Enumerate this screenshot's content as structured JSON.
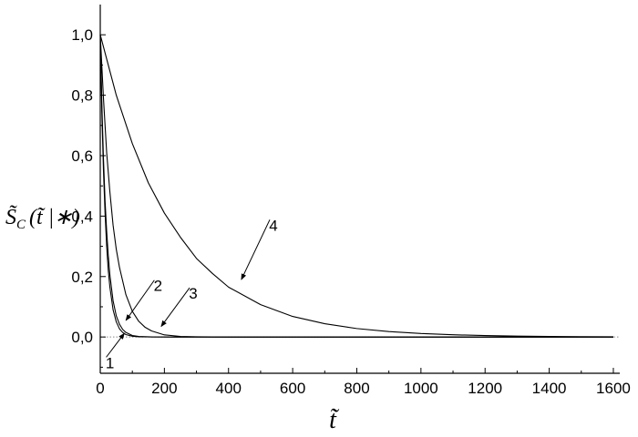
{
  "chart_data": {
    "type": "line",
    "title": "",
    "xlabel": "t̃",
    "ylabel": {
      "main": "S̃",
      "subscript": "C",
      "argument": "(t̃ |∗)"
    },
    "xlim": [
      0,
      1620
    ],
    "ylim": [
      -0.12,
      1.1
    ],
    "x_ticks": [
      0,
      200,
      400,
      600,
      800,
      1000,
      1200,
      1400,
      1600
    ],
    "x_tick_labels": [
      "0",
      "200",
      "400",
      "600",
      "800",
      "1000",
      "1200",
      "1400",
      "1600"
    ],
    "y_ticks": [
      0.0,
      0.2,
      0.4,
      0.6,
      0.8,
      1.0
    ],
    "y_tick_labels": [
      "0,0",
      "0,2",
      "0,4",
      "0,6",
      "0,8",
      "1,0"
    ],
    "reference_lines": {
      "x": 0,
      "y": 0,
      "style": "dotted"
    },
    "series": [
      {
        "name": "1",
        "x": [
          0,
          5,
          10,
          15,
          20,
          25,
          30,
          40,
          50,
          60,
          70,
          80,
          100,
          120,
          160,
          250,
          1600
        ],
        "y": [
          1.0,
          0.74,
          0.55,
          0.41,
          0.3,
          0.22,
          0.165,
          0.09,
          0.05,
          0.027,
          0.015,
          0.008,
          0.0025,
          0.0007,
          0.0001,
          0.0,
          0.0
        ]
      },
      {
        "name": "2",
        "x": [
          0,
          5,
          10,
          15,
          20,
          25,
          30,
          40,
          50,
          60,
          70,
          80,
          100,
          120,
          160,
          250,
          1600
        ],
        "y": [
          1.0,
          0.77,
          0.59,
          0.45,
          0.35,
          0.27,
          0.205,
          0.12,
          0.07,
          0.042,
          0.025,
          0.015,
          0.005,
          0.0017,
          0.0002,
          0.0,
          0.0
        ]
      },
      {
        "name": "3",
        "x": [
          0,
          10,
          20,
          30,
          40,
          50,
          60,
          80,
          100,
          120,
          140,
          160,
          200,
          250,
          300,
          400,
          1600
        ],
        "y": [
          1.0,
          0.79,
          0.61,
          0.48,
          0.37,
          0.29,
          0.23,
          0.14,
          0.085,
          0.052,
          0.032,
          0.02,
          0.007,
          0.002,
          0.0006,
          0.0,
          0.0
        ]
      },
      {
        "name": "4",
        "x": [
          0,
          50,
          100,
          150,
          200,
          250,
          300,
          350,
          400,
          500,
          600,
          700,
          800,
          900,
          1000,
          1100,
          1200,
          1300,
          1400,
          1500,
          1600
        ],
        "y": [
          1.0,
          0.8,
          0.64,
          0.51,
          0.41,
          0.33,
          0.26,
          0.21,
          0.165,
          0.107,
          0.068,
          0.044,
          0.028,
          0.018,
          0.0115,
          0.0074,
          0.0047,
          0.003,
          0.0019,
          0.0012,
          0.0008
        ]
      }
    ],
    "annotations": [
      {
        "label": "1",
        "target_series": "1",
        "point_to": [
          75,
          0.012
        ],
        "text_at": [
          30,
          -0.085
        ]
      },
      {
        "label": "2",
        "target_series": "2",
        "point_to": [
          80,
          0.055
        ],
        "text_at": [
          180,
          0.17
        ]
      },
      {
        "label": "3",
        "target_series": "3",
        "point_to": [
          190,
          0.035
        ],
        "text_at": [
          290,
          0.145
        ]
      },
      {
        "label": "4",
        "target_series": "4",
        "point_to": [
          440,
          0.19
        ],
        "text_at": [
          540,
          0.37
        ]
      }
    ],
    "grid": false,
    "legend": "none"
  }
}
